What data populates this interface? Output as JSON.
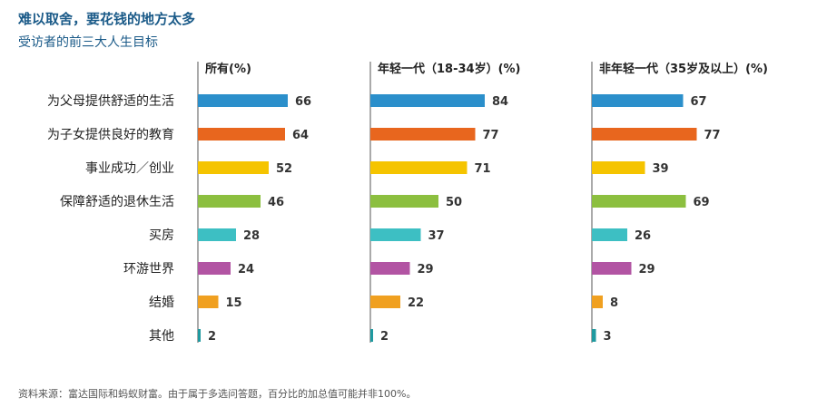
{
  "header": {
    "title": "难以取舍，要花钱的地方太多",
    "subtitle": "受访者的前三大人生目标"
  },
  "footer": {
    "source": "资料来源：富达国际和蚂蚁财富。由于属于多选问答题，百分比的加总值可能并非100%。"
  },
  "chart_data": {
    "type": "bar",
    "orientation": "horizontal",
    "categories": [
      "为父母提供舒适的生活",
      "为子女提供良好的教育",
      "事业成功／创业",
      "保障舒适的退休生活",
      "买房",
      "环游世界",
      "结婚",
      "其他"
    ],
    "colors": [
      "#2b8fcb",
      "#e8661e",
      "#f5c400",
      "#8cbf3f",
      "#3dbfc3",
      "#b254a3",
      "#f0a020",
      "#1f9aa0"
    ],
    "panels": [
      {
        "title": "所有(%)",
        "values": [
          66,
          64,
          52,
          46,
          28,
          24,
          15,
          2
        ]
      },
      {
        "title": "年轻一代（18-34岁）(%)",
        "values": [
          84,
          77,
          71,
          50,
          37,
          29,
          22,
          2
        ]
      },
      {
        "title": "非年轻一代（35岁及以上）(%)",
        "values": [
          67,
          77,
          39,
          69,
          26,
          29,
          8,
          3
        ]
      }
    ],
    "xlim": [
      0,
      100
    ],
    "grid": false
  }
}
